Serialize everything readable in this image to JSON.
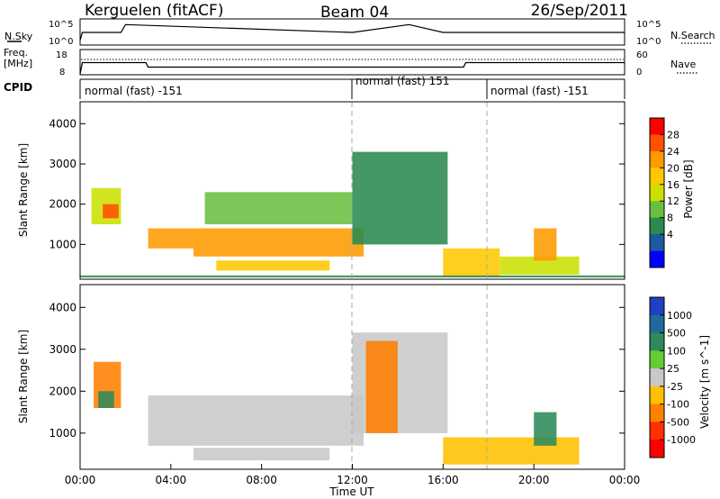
{
  "header": {
    "station": "Kerguelen (fitACF)",
    "beam": "Beam 04",
    "date": "26/Sep/2011"
  },
  "noise_panel": {
    "left_label": "N.Sky",
    "right_label": "N.Search",
    "left_ticks": [
      "10^5",
      "10^0"
    ],
    "right_ticks": [
      "10^5",
      "10^0"
    ]
  },
  "freq_panel": {
    "left_label_line1": "Freq.",
    "left_label_line2": "[MHz]",
    "right_label": "Nave",
    "left_ticks": [
      "18",
      "8"
    ],
    "right_ticks": [
      "60",
      "0"
    ]
  },
  "cpid_panel": {
    "label": "CPID",
    "segments": [
      {
        "text": "normal (fast) -151",
        "start_hour": 0,
        "end_hour": 12
      },
      {
        "text": "normal (fast) 151",
        "start_hour": 12,
        "end_hour": 18
      },
      {
        "text": "normal (fast) -151",
        "start_hour": 18,
        "end_hour": 24
      }
    ]
  },
  "axes": {
    "x_ticks": [
      "00:00",
      "04:00",
      "08:00",
      "12:00",
      "16:00",
      "20:00",
      "00:00"
    ],
    "x_title": "Time UT",
    "y_title": "Slant Range [km]",
    "y_ticks": [
      "1000",
      "2000",
      "3000",
      "4000"
    ]
  },
  "power_colorbar": {
    "title": "Power [dB]",
    "labels": [
      "28",
      "24",
      "20",
      "16",
      "12",
      "8",
      "4"
    ],
    "colors": [
      "#ff0000",
      "#ff5000",
      "#ff9a00",
      "#ffc800",
      "#cce000",
      "#6abf40",
      "#2a8a50",
      "#1a5aa0",
      "#0000ff"
    ]
  },
  "velocity_colorbar": {
    "title": "Velocity [m s^-1]",
    "labels": [
      "1000",
      "500",
      "100",
      "25",
      "-25",
      "-100",
      "-500",
      "-1000"
    ],
    "colors": [
      "#2040c0",
      "#1f6a9a",
      "#2e8a5a",
      "#66cc33",
      "#c8c8c8",
      "#ffc000",
      "#ff8000",
      "#ff3000",
      "#ff0000"
    ]
  },
  "chart_data": [
    {
      "type": "line",
      "title": "Kerguelen (fitACF)",
      "xlabel": "",
      "ylabel": "N.Sky",
      "xlim": [
        0,
        24
      ],
      "series": [
        {
          "name": "N.Sky",
          "x": [
            0,
            0.1,
            1.8,
            2.0,
            12,
            14.5,
            16,
            24
          ],
          "y": [
            1,
            3,
            3,
            5,
            3,
            5,
            3,
            3
          ]
        }
      ]
    },
    {
      "type": "line",
      "title": "",
      "xlabel": "",
      "ylabel": "Freq. [MHz]",
      "xlim": [
        0,
        24
      ],
      "ylim": [
        8,
        18
      ],
      "series": [
        {
          "name": "Freq.",
          "x": [
            0,
            0.1,
            2.9,
            3.0,
            16.9,
            17.0,
            24
          ],
          "y": [
            8,
            13,
            13,
            11,
            11,
            13,
            13
          ]
        }
      ]
    },
    {
      "type": "heatmap",
      "title": "Power [dB]",
      "xlabel": "Time UT",
      "ylabel": "Slant Range [km]",
      "xlim": [
        0,
        24
      ],
      "ylim": [
        180,
        4500
      ],
      "regions": [
        {
          "t0": 0.5,
          "t1": 1.8,
          "r0": 1500,
          "r1": 2400,
          "value": 16
        },
        {
          "t0": 1.0,
          "t1": 1.7,
          "r0": 1650,
          "r1": 2000,
          "value": 28
        },
        {
          "t0": 3.0,
          "t1": 5.0,
          "r0": 900,
          "r1": 1400,
          "value": 26
        },
        {
          "t0": 5.0,
          "t1": 12.5,
          "r0": 700,
          "r1": 1400,
          "value": 24
        },
        {
          "t0": 6.0,
          "t1": 11.0,
          "r0": 350,
          "r1": 600,
          "value": 20
        },
        {
          "t0": 5.5,
          "t1": 12.0,
          "r0": 1500,
          "r1": 2300,
          "value": 12
        },
        {
          "t0": 12.0,
          "t1": 16.2,
          "r0": 1000,
          "r1": 3300,
          "value": 10
        },
        {
          "t0": 16.0,
          "t1": 18.5,
          "r0": 200,
          "r1": 900,
          "value": 20
        },
        {
          "t0": 18.5,
          "t1": 22.0,
          "r0": 250,
          "r1": 700,
          "value": 16
        },
        {
          "t0": 20.0,
          "t1": 21.0,
          "r0": 600,
          "r1": 1400,
          "value": 24
        },
        {
          "t0": 0.0,
          "t1": 24.0,
          "r0": 180,
          "r1": 230,
          "value": 8
        }
      ]
    },
    {
      "type": "heatmap",
      "title": "Velocity [m s^-1]",
      "xlabel": "Time UT",
      "ylabel": "Slant Range [km]",
      "xlim": [
        0,
        24
      ],
      "ylim": [
        180,
        4500
      ],
      "regions": [
        {
          "t0": 0.6,
          "t1": 1.8,
          "r0": 1600,
          "r1": 2700,
          "value": -300
        },
        {
          "t0": 0.8,
          "t1": 1.5,
          "r0": 1600,
          "r1": 2000,
          "value": 200
        },
        {
          "t0": 3.0,
          "t1": 12.5,
          "r0": 700,
          "r1": 1900,
          "value": 0
        },
        {
          "t0": 5.0,
          "t1": 11.0,
          "r0": 350,
          "r1": 650,
          "value": 0
        },
        {
          "t0": 12.0,
          "t1": 16.2,
          "r0": 1000,
          "r1": 3400,
          "value": 0
        },
        {
          "t0": 12.6,
          "t1": 14.0,
          "r0": 1000,
          "r1": 3200,
          "value": -200
        },
        {
          "t0": 16.0,
          "t1": 22.0,
          "r0": 250,
          "r1": 900,
          "value": -100
        },
        {
          "t0": 20.0,
          "t1": 21.0,
          "r0": 700,
          "r1": 1500,
          "value": 300
        }
      ]
    }
  ]
}
